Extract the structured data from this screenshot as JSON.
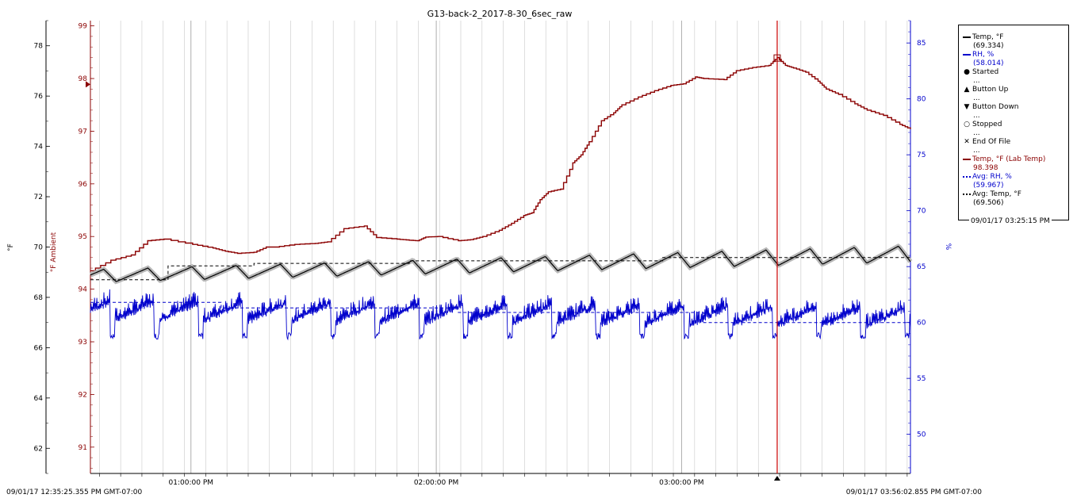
{
  "chart_data": {
    "type": "line",
    "title": "G13-back-2_2017-8-30_6sec_raw",
    "x_start_label": "09/01/17 12:35:25.355 PM GMT-07:00",
    "x_end_label": "09/01/17 03:56:02.855 PM GMT-07:00",
    "x_ticks": [
      "01:00:00 PM",
      "02:00:00 PM",
      "03:00:00 PM"
    ],
    "x_range_minutes": [
      0,
      200.6
    ],
    "x_tick_minutes": [
      24.6,
      84.6,
      144.6
    ],
    "cursor_minute": 168.0,
    "axes": {
      "left_temp": {
        "label": "°F",
        "range": [
          61.0,
          79.0
        ],
        "ticks": [
          "62",
          "64",
          "66",
          "68",
          "70",
          "72",
          "74",
          "76",
          "78"
        ],
        "color": "#000000"
      },
      "left_ambient": {
        "label": "°F Ambient",
        "range": [
          90.5,
          99.1
        ],
        "ticks": [
          "91",
          "92",
          "93",
          "94",
          "95",
          "96",
          "97",
          "98",
          "99"
        ],
        "color": "#8b0000"
      },
      "right_rh": {
        "label": "%",
        "range": [
          46.5,
          87.0
        ],
        "ticks": [
          "50",
          "55",
          "60",
          "65",
          "70",
          "75",
          "80",
          "85"
        ],
        "color": "#0000cc"
      }
    },
    "series": [
      {
        "name": "Temp, °F (Lab Temp)",
        "axis": "left_ambient",
        "color": "#8b0000",
        "x": [
          0,
          5,
          10,
          14,
          18,
          25,
          30,
          33,
          36,
          40,
          43,
          45,
          50,
          55,
          58,
          62,
          67,
          70,
          75,
          78,
          80,
          82,
          85,
          90,
          93,
          96,
          100,
          103,
          106,
          108,
          110,
          112,
          115,
          118,
          120,
          122,
          125,
          128,
          130,
          134,
          138,
          142,
          145,
          148,
          150,
          155,
          158,
          162,
          166,
          168,
          170,
          172,
          175,
          178,
          180,
          183,
          187,
          190,
          194,
          198,
          200.6
        ],
        "y": [
          94.35,
          94.55,
          94.65,
          94.92,
          94.95,
          94.85,
          94.78,
          94.72,
          94.68,
          94.7,
          94.8,
          94.8,
          94.85,
          94.87,
          94.9,
          95.15,
          95.2,
          94.98,
          94.95,
          94.93,
          94.92,
          94.99,
          95.0,
          94.92,
          94.94,
          95.0,
          95.12,
          95.25,
          95.4,
          95.45,
          95.7,
          95.85,
          95.9,
          96.4,
          96.55,
          96.8,
          97.2,
          97.35,
          97.5,
          97.65,
          97.77,
          97.87,
          97.9,
          98.03,
          98.0,
          97.98,
          98.15,
          98.21,
          98.25,
          98.4,
          98.25,
          98.2,
          98.12,
          97.95,
          97.8,
          97.7,
          97.52,
          97.4,
          97.3,
          97.13,
          97.04
        ]
      },
      {
        "name": "Temp, °F",
        "axis": "left_temp",
        "color": "#000000",
        "cycle_minutes": 10.8,
        "baseline": [
          68.7,
          69.5
        ],
        "peak": [
          69.1,
          69.9
        ],
        "trough": [
          68.6,
          69.4
        ],
        "current_value": "(69.334)"
      },
      {
        "name": "RH, %",
        "axis": "right_rh",
        "color": "#0000cc",
        "cycle_minutes": 10.8,
        "band": [
          59.8,
          62.5
        ],
        "dip": 58.5,
        "current_value": "(58.014)"
      }
    ],
    "averages": [
      {
        "name": "Avg: Temp, °F",
        "value": 69.506,
        "axis": "left_temp"
      },
      {
        "name": "Avg: RH, %",
        "value": 59.967,
        "axis": "right_rh"
      }
    ]
  },
  "legend": {
    "items": [
      {
        "symbol": "line",
        "color": "#000000",
        "name": "Temp, °F",
        "value": "(69.334)"
      },
      {
        "symbol": "line",
        "color": "#0000cc",
        "name": "RH, %",
        "value": "(58.014)"
      },
      {
        "symbol": "●",
        "color": "#000000",
        "name": "Started",
        "value": "..."
      },
      {
        "symbol": "▲",
        "color": "#000000",
        "name": "Button Up",
        "value": "..."
      },
      {
        "symbol": "▼",
        "color": "#000000",
        "name": "Button Down",
        "value": "..."
      },
      {
        "symbol": "○",
        "color": "#000000",
        "name": "Stopped",
        "value": "..."
      },
      {
        "symbol": "✕",
        "color": "#000000",
        "name": "End Of File",
        "value": "..."
      },
      {
        "symbol": "line",
        "color": "#8b0000",
        "name": "Temp, °F (Lab Temp)",
        "value": "98.398"
      },
      {
        "symbol": "dash",
        "color": "#0000cc",
        "name": "Avg: RH, %",
        "value": "(59.967)"
      },
      {
        "symbol": "dash",
        "color": "#000000",
        "name": "Avg: Temp, °F",
        "value": "(69.506)"
      }
    ],
    "timestamp": "09/01/17 03:25:15 PM"
  }
}
